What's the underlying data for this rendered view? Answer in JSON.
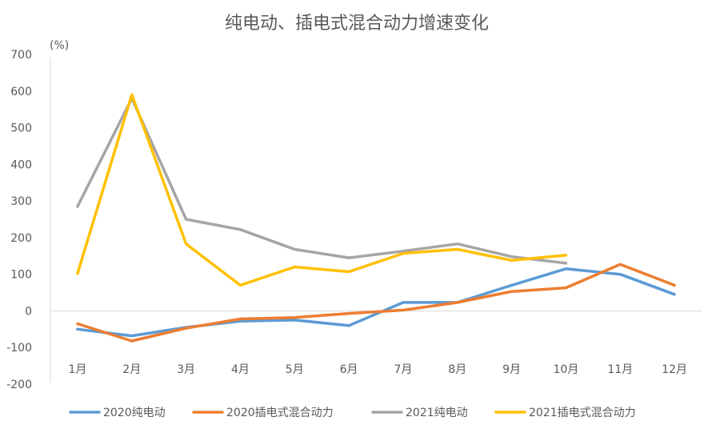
{
  "chart_data": {
    "type": "line",
    "title": "纯电动、插电式混合动力增速变化",
    "ylabel": "(%)",
    "xlabel": "",
    "ylim": [
      -200,
      700
    ],
    "yticks": [
      700,
      600,
      500,
      400,
      300,
      200,
      100,
      0,
      -100,
      -200
    ],
    "categories": [
      "1月",
      "2月",
      "3月",
      "4月",
      "5月",
      "6月",
      "7月",
      "8月",
      "9月",
      "10月",
      "11月",
      "12月"
    ],
    "legend_position": "bottom",
    "series": [
      {
        "name": "2020纯电动",
        "color": "#5B9BD5",
        "values": [
          -50,
          -68,
          -45,
          -28,
          -25,
          -40,
          23,
          23,
          70,
          115,
          100,
          45
        ]
      },
      {
        "name": "2020插电式混合动力",
        "color": "#ED7D31",
        "values": [
          -35,
          -82,
          -47,
          -22,
          -18,
          -7,
          2,
          23,
          53,
          63,
          127,
          70
        ]
      },
      {
        "name": "2021纯电动",
        "color": "#A5A5A5",
        "values": [
          285,
          580,
          250,
          222,
          168,
          145,
          163,
          183,
          148,
          130,
          null,
          null
        ]
      },
      {
        "name": "2021插电式混合动力",
        "color": "#FFC000",
        "values": [
          102,
          590,
          183,
          70,
          120,
          107,
          157,
          168,
          138,
          152,
          null,
          null
        ]
      }
    ]
  }
}
